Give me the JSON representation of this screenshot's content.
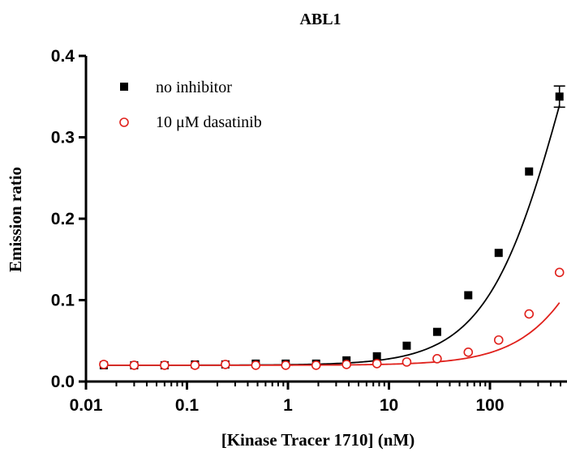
{
  "chart_data": {
    "type": "scatter",
    "title": "ABL1",
    "xlabel": "[Kinase Tracer 1710] (nM)",
    "ylabel": "Emission ratio",
    "xscale": "log",
    "xlim": [
      0.01,
      500
    ],
    "ylim": [
      0,
      0.4
    ],
    "x_ticks": [
      0.01,
      0.1,
      1,
      10,
      100
    ],
    "x_tick_labels": [
      "0.01",
      "0.1",
      "1",
      "10",
      "100"
    ],
    "y_ticks": [
      0,
      0.1,
      0.2,
      0.3,
      0.4
    ],
    "y_tick_labels": [
      "0.0",
      "0.1",
      "0.2",
      "0.3",
      "0.4"
    ],
    "legend_position": "top-left",
    "series": [
      {
        "name": "no inhibitor",
        "color": "#000000",
        "marker": "filled-square",
        "x": [
          0.015,
          0.03,
          0.06,
          0.12,
          0.24,
          0.48,
          0.95,
          1.9,
          3.8,
          7.6,
          15,
          30,
          61,
          122,
          244,
          488
        ],
        "y": [
          0.02,
          0.02,
          0.02,
          0.021,
          0.021,
          0.022,
          0.022,
          0.022,
          0.026,
          0.031,
          0.044,
          0.061,
          0.106,
          0.158,
          0.258,
          0.35
        ],
        "error_bar": {
          "x": 488,
          "low": 0.337,
          "high": 0.363
        },
        "fit": {
          "bottom": 0.02,
          "top": 0.74,
          "ec50": 600,
          "hill": 1.1
        }
      },
      {
        "name": "10 μM dasatinib",
        "color": "#e0201b",
        "marker": "open-circle",
        "x": [
          0.015,
          0.03,
          0.06,
          0.12,
          0.24,
          0.48,
          0.95,
          1.9,
          3.8,
          7.6,
          15,
          30,
          61,
          122,
          244,
          488
        ],
        "y": [
          0.021,
          0.02,
          0.02,
          0.02,
          0.021,
          0.02,
          0.02,
          0.02,
          0.021,
          0.022,
          0.024,
          0.028,
          0.036,
          0.051,
          0.083,
          0.134
        ],
        "fit": {
          "bottom": 0.02,
          "top": 0.52,
          "ec50": 2300,
          "hill": 1.1
        }
      }
    ]
  }
}
